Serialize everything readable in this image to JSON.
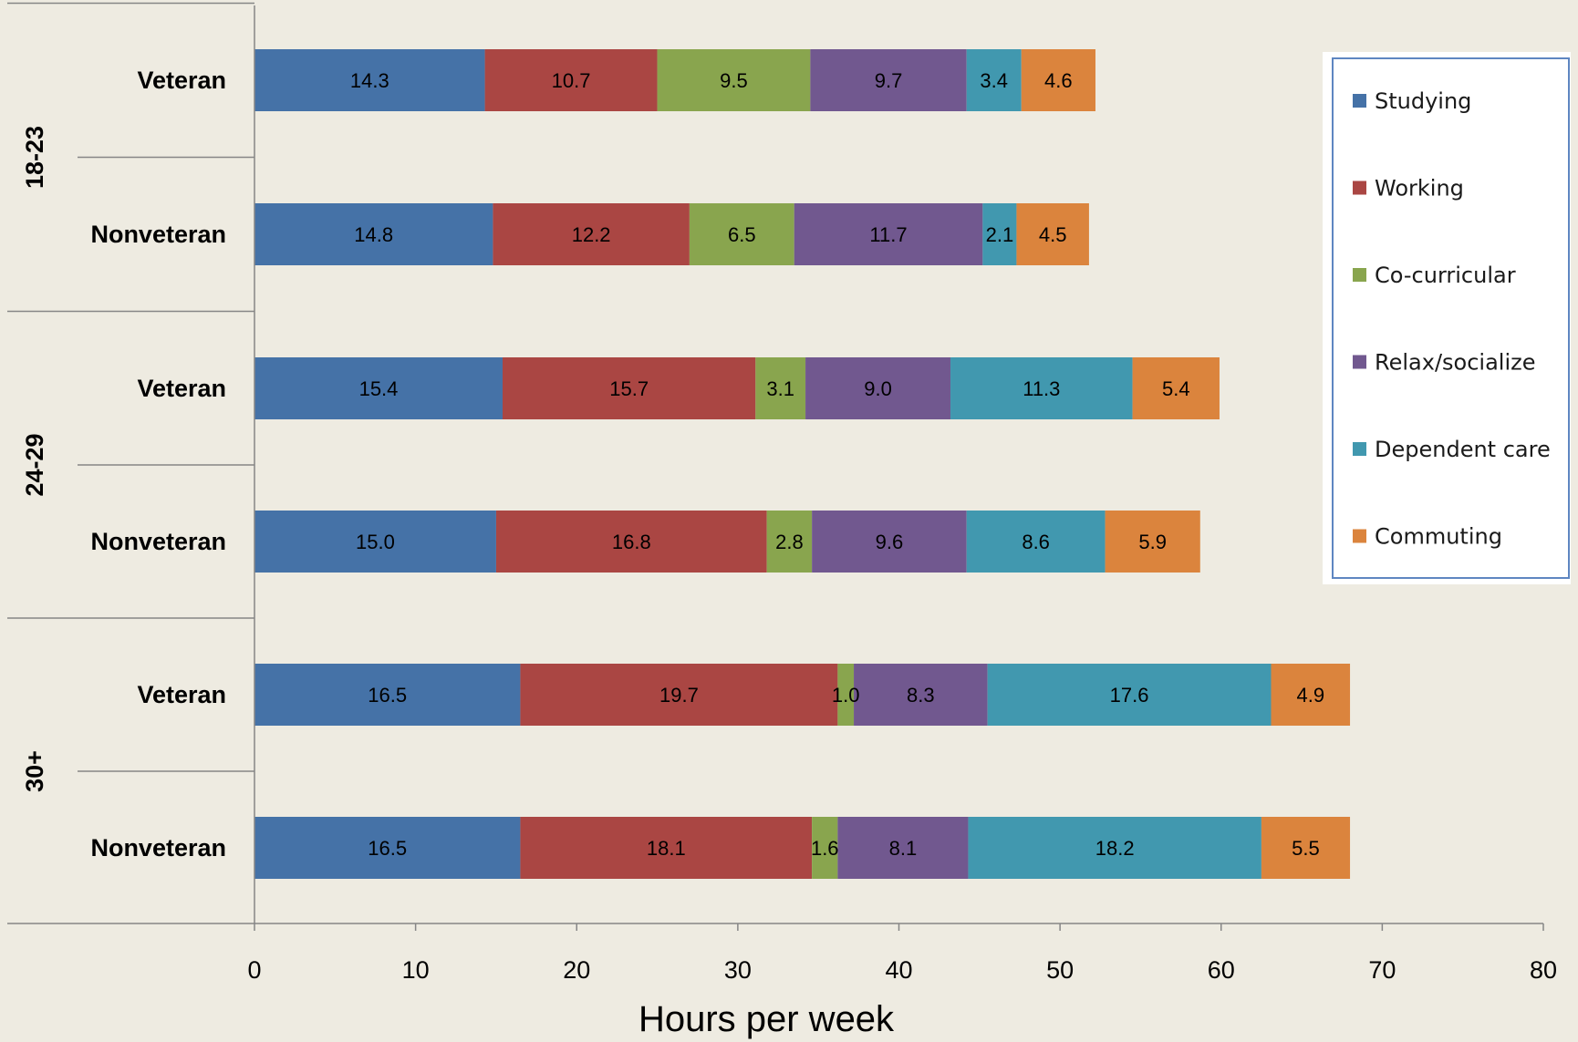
{
  "chart_data": {
    "type": "bar",
    "orientation": "horizontal",
    "stacked": true,
    "xlabel": "Hours per week",
    "xlim": [
      0,
      80
    ],
    "xticks": [
      0,
      10,
      20,
      30,
      40,
      50,
      60,
      70,
      80
    ],
    "legend_position": "right",
    "groups": [
      {
        "label": "18-23",
        "rows": [
          "Veteran",
          "Nonveteran"
        ]
      },
      {
        "label": "24-29",
        "rows": [
          "Veteran",
          "Nonveteran"
        ]
      },
      {
        "label": "30+",
        "rows": [
          "Veteran",
          "Nonveteran"
        ]
      }
    ],
    "categories": [
      "Veteran",
      "Nonveteran",
      "Veteran",
      "Nonveteran",
      "Veteran",
      "Nonveteran"
    ],
    "series": [
      {
        "name": "Studying",
        "color": "#4572A7",
        "values": [
          14.3,
          14.8,
          15.4,
          15.0,
          16.5,
          16.5
        ]
      },
      {
        "name": "Working",
        "color": "#AA4643",
        "values": [
          10.7,
          12.2,
          15.7,
          16.8,
          19.7,
          18.1
        ]
      },
      {
        "name": "Co-curricular",
        "color": "#89A54E",
        "values": [
          9.5,
          6.5,
          3.1,
          2.8,
          1.0,
          1.6
        ]
      },
      {
        "name": "Relax/socialize",
        "color": "#71588F",
        "values": [
          9.7,
          11.7,
          9.0,
          9.6,
          8.3,
          8.1
        ]
      },
      {
        "name": "Dependent care",
        "color": "#4198AF",
        "values": [
          3.4,
          2.1,
          11.3,
          8.6,
          17.6,
          18.2
        ]
      },
      {
        "name": "Commuting",
        "color": "#DB843D",
        "values": [
          4.6,
          4.5,
          5.4,
          5.9,
          4.9,
          5.5
        ]
      }
    ]
  }
}
